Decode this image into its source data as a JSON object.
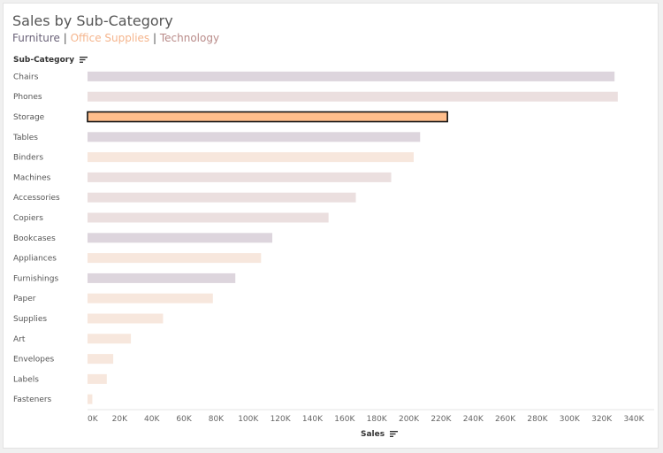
{
  "title": "Sales by Sub-Category",
  "legend": [
    {
      "label": "Furniture",
      "color": "#6b6379"
    },
    {
      "label": "Office Supplies",
      "color": "#f5b58d"
    },
    {
      "label": "Technology",
      "color": "#b98b89"
    }
  ],
  "legend_separator": " | ",
  "row_header": "Sub-Category",
  "sort_icon": "sort-descending-icon",
  "chart_data": {
    "type": "bar",
    "orientation": "horizontal",
    "title": "Sales by Sub-Category",
    "ylabel": "Sub-Category",
    "xlabel": "Sales",
    "xlim": [
      0,
      340000
    ],
    "grid": false,
    "categories": [
      "Chairs",
      "Phones",
      "Storage",
      "Tables",
      "Binders",
      "Machines",
      "Accessories",
      "Copiers",
      "Bookcases",
      "Appliances",
      "Furnishings",
      "Paper",
      "Supplies",
      "Art",
      "Envelopes",
      "Labels",
      "Fasteners"
    ],
    "segments": [
      "Furniture",
      "Technology",
      "Office Supplies",
      "Furniture",
      "Office Supplies",
      "Technology",
      "Technology",
      "Technology",
      "Furniture",
      "Office Supplies",
      "Furniture",
      "Office Supplies",
      "Office Supplies",
      "Office Supplies",
      "Office Supplies",
      "Office Supplies",
      "Office Supplies"
    ],
    "values": [
      328000,
      330000,
      224000,
      207000,
      203000,
      189000,
      167000,
      150000,
      115000,
      108000,
      92000,
      78000,
      47000,
      27000,
      16000,
      12000,
      3000
    ],
    "highlighted": "Storage",
    "ticks": [
      "0K",
      "20K",
      "40K",
      "60K",
      "80K",
      "100K",
      "120K",
      "140K",
      "160K",
      "180K",
      "200K",
      "220K",
      "240K",
      "260K",
      "280K",
      "300K",
      "320K",
      "340K"
    ],
    "colors": {
      "Furniture": "#ddd5dd",
      "Office Supplies": "#f7e7dd",
      "Technology": "#ebdfdf",
      "highlight": "#ffbe8c",
      "highlight_border": "#111111"
    }
  }
}
